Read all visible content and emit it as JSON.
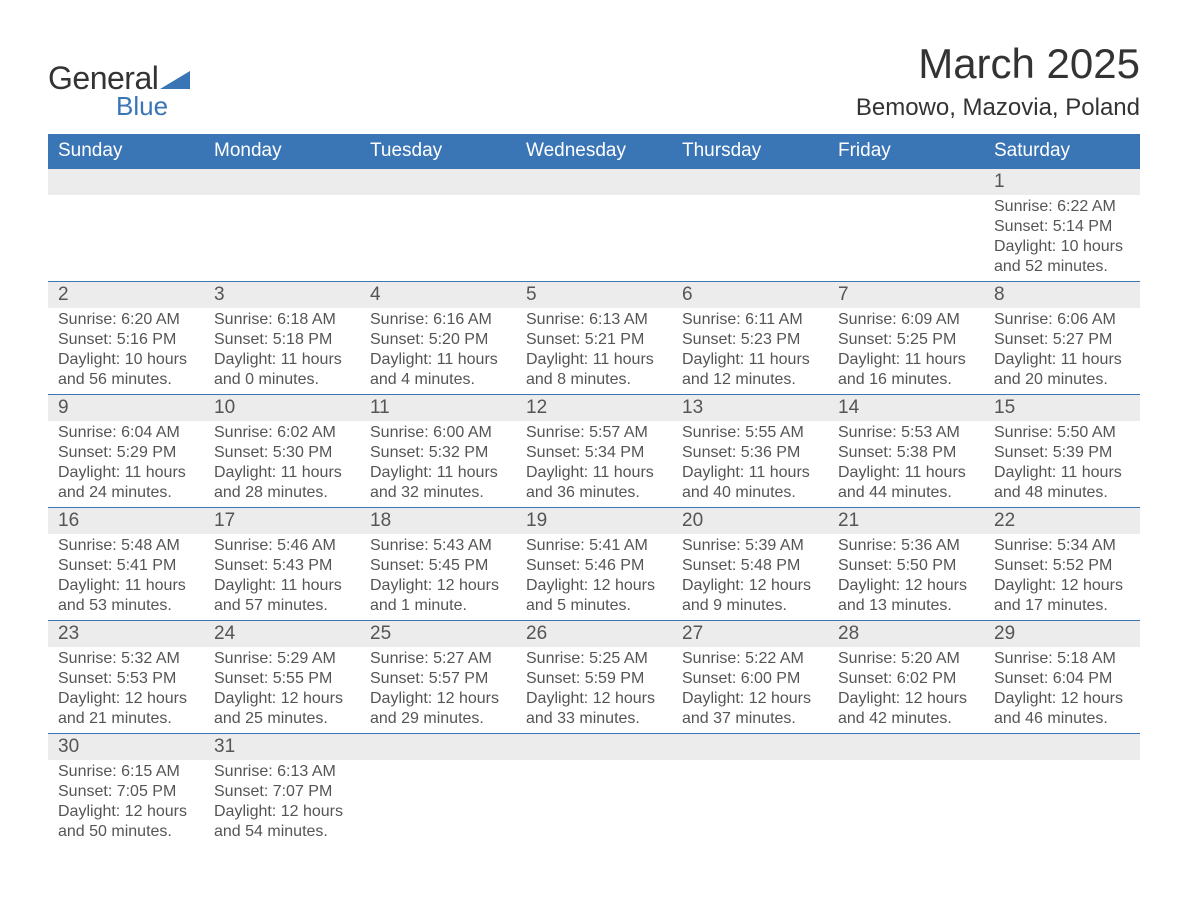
{
  "logo": {
    "text1": "General",
    "text2": "Blue",
    "triangle_color": "#3a75b5"
  },
  "title": "March 2025",
  "location": "Bemowo, Mazovia, Poland",
  "colors": {
    "header_bg": "#3a75b5",
    "header_fg": "#ffffff",
    "daynum_bg": "#ececec",
    "body_fg": "#555555",
    "border": "#3a75b5",
    "page_bg": "#ffffff"
  },
  "typography": {
    "title_fontsize": 42,
    "location_fontsize": 24,
    "header_fontsize": 19,
    "daynum_fontsize": 19,
    "body_fontsize": 16,
    "font_family": "Arial"
  },
  "layout": {
    "columns": 7,
    "rows": 6,
    "cell_width_pct": 14.28
  },
  "weekdays": [
    "Sunday",
    "Monday",
    "Tuesday",
    "Wednesday",
    "Thursday",
    "Friday",
    "Saturday"
  ],
  "weeks": [
    [
      {
        "n": "",
        "sr": "",
        "ss": "",
        "dl": ""
      },
      {
        "n": "",
        "sr": "",
        "ss": "",
        "dl": ""
      },
      {
        "n": "",
        "sr": "",
        "ss": "",
        "dl": ""
      },
      {
        "n": "",
        "sr": "",
        "ss": "",
        "dl": ""
      },
      {
        "n": "",
        "sr": "",
        "ss": "",
        "dl": ""
      },
      {
        "n": "",
        "sr": "",
        "ss": "",
        "dl": ""
      },
      {
        "n": "1",
        "sr": "Sunrise: 6:22 AM",
        "ss": "Sunset: 5:14 PM",
        "dl": "Daylight: 10 hours and 52 minutes."
      }
    ],
    [
      {
        "n": "2",
        "sr": "Sunrise: 6:20 AM",
        "ss": "Sunset: 5:16 PM",
        "dl": "Daylight: 10 hours and 56 minutes."
      },
      {
        "n": "3",
        "sr": "Sunrise: 6:18 AM",
        "ss": "Sunset: 5:18 PM",
        "dl": "Daylight: 11 hours and 0 minutes."
      },
      {
        "n": "4",
        "sr": "Sunrise: 6:16 AM",
        "ss": "Sunset: 5:20 PM",
        "dl": "Daylight: 11 hours and 4 minutes."
      },
      {
        "n": "5",
        "sr": "Sunrise: 6:13 AM",
        "ss": "Sunset: 5:21 PM",
        "dl": "Daylight: 11 hours and 8 minutes."
      },
      {
        "n": "6",
        "sr": "Sunrise: 6:11 AM",
        "ss": "Sunset: 5:23 PM",
        "dl": "Daylight: 11 hours and 12 minutes."
      },
      {
        "n": "7",
        "sr": "Sunrise: 6:09 AM",
        "ss": "Sunset: 5:25 PM",
        "dl": "Daylight: 11 hours and 16 minutes."
      },
      {
        "n": "8",
        "sr": "Sunrise: 6:06 AM",
        "ss": "Sunset: 5:27 PM",
        "dl": "Daylight: 11 hours and 20 minutes."
      }
    ],
    [
      {
        "n": "9",
        "sr": "Sunrise: 6:04 AM",
        "ss": "Sunset: 5:29 PM",
        "dl": "Daylight: 11 hours and 24 minutes."
      },
      {
        "n": "10",
        "sr": "Sunrise: 6:02 AM",
        "ss": "Sunset: 5:30 PM",
        "dl": "Daylight: 11 hours and 28 minutes."
      },
      {
        "n": "11",
        "sr": "Sunrise: 6:00 AM",
        "ss": "Sunset: 5:32 PM",
        "dl": "Daylight: 11 hours and 32 minutes."
      },
      {
        "n": "12",
        "sr": "Sunrise: 5:57 AM",
        "ss": "Sunset: 5:34 PM",
        "dl": "Daylight: 11 hours and 36 minutes."
      },
      {
        "n": "13",
        "sr": "Sunrise: 5:55 AM",
        "ss": "Sunset: 5:36 PM",
        "dl": "Daylight: 11 hours and 40 minutes."
      },
      {
        "n": "14",
        "sr": "Sunrise: 5:53 AM",
        "ss": "Sunset: 5:38 PM",
        "dl": "Daylight: 11 hours and 44 minutes."
      },
      {
        "n": "15",
        "sr": "Sunrise: 5:50 AM",
        "ss": "Sunset: 5:39 PM",
        "dl": "Daylight: 11 hours and 48 minutes."
      }
    ],
    [
      {
        "n": "16",
        "sr": "Sunrise: 5:48 AM",
        "ss": "Sunset: 5:41 PM",
        "dl": "Daylight: 11 hours and 53 minutes."
      },
      {
        "n": "17",
        "sr": "Sunrise: 5:46 AM",
        "ss": "Sunset: 5:43 PM",
        "dl": "Daylight: 11 hours and 57 minutes."
      },
      {
        "n": "18",
        "sr": "Sunrise: 5:43 AM",
        "ss": "Sunset: 5:45 PM",
        "dl": "Daylight: 12 hours and 1 minute."
      },
      {
        "n": "19",
        "sr": "Sunrise: 5:41 AM",
        "ss": "Sunset: 5:46 PM",
        "dl": "Daylight: 12 hours and 5 minutes."
      },
      {
        "n": "20",
        "sr": "Sunrise: 5:39 AM",
        "ss": "Sunset: 5:48 PM",
        "dl": "Daylight: 12 hours and 9 minutes."
      },
      {
        "n": "21",
        "sr": "Sunrise: 5:36 AM",
        "ss": "Sunset: 5:50 PM",
        "dl": "Daylight: 12 hours and 13 minutes."
      },
      {
        "n": "22",
        "sr": "Sunrise: 5:34 AM",
        "ss": "Sunset: 5:52 PM",
        "dl": "Daylight: 12 hours and 17 minutes."
      }
    ],
    [
      {
        "n": "23",
        "sr": "Sunrise: 5:32 AM",
        "ss": "Sunset: 5:53 PM",
        "dl": "Daylight: 12 hours and 21 minutes."
      },
      {
        "n": "24",
        "sr": "Sunrise: 5:29 AM",
        "ss": "Sunset: 5:55 PM",
        "dl": "Daylight: 12 hours and 25 minutes."
      },
      {
        "n": "25",
        "sr": "Sunrise: 5:27 AM",
        "ss": "Sunset: 5:57 PM",
        "dl": "Daylight: 12 hours and 29 minutes."
      },
      {
        "n": "26",
        "sr": "Sunrise: 5:25 AM",
        "ss": "Sunset: 5:59 PM",
        "dl": "Daylight: 12 hours and 33 minutes."
      },
      {
        "n": "27",
        "sr": "Sunrise: 5:22 AM",
        "ss": "Sunset: 6:00 PM",
        "dl": "Daylight: 12 hours and 37 minutes."
      },
      {
        "n": "28",
        "sr": "Sunrise: 5:20 AM",
        "ss": "Sunset: 6:02 PM",
        "dl": "Daylight: 12 hours and 42 minutes."
      },
      {
        "n": "29",
        "sr": "Sunrise: 5:18 AM",
        "ss": "Sunset: 6:04 PM",
        "dl": "Daylight: 12 hours and 46 minutes."
      }
    ],
    [
      {
        "n": "30",
        "sr": "Sunrise: 6:15 AM",
        "ss": "Sunset: 7:05 PM",
        "dl": "Daylight: 12 hours and 50 minutes."
      },
      {
        "n": "31",
        "sr": "Sunrise: 6:13 AM",
        "ss": "Sunset: 7:07 PM",
        "dl": "Daylight: 12 hours and 54 minutes."
      },
      {
        "n": "",
        "sr": "",
        "ss": "",
        "dl": ""
      },
      {
        "n": "",
        "sr": "",
        "ss": "",
        "dl": ""
      },
      {
        "n": "",
        "sr": "",
        "ss": "",
        "dl": ""
      },
      {
        "n": "",
        "sr": "",
        "ss": "",
        "dl": ""
      },
      {
        "n": "",
        "sr": "",
        "ss": "",
        "dl": ""
      }
    ]
  ]
}
